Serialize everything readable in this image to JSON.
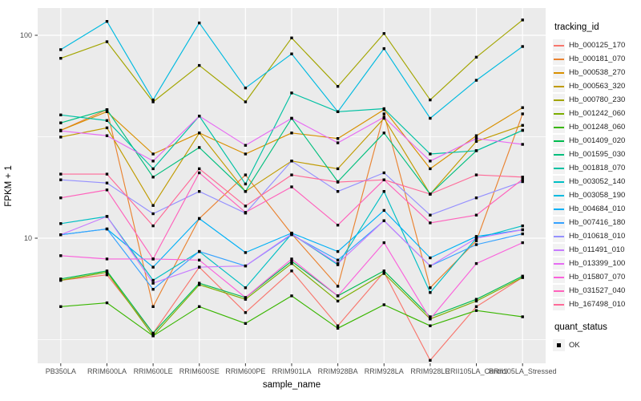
{
  "chart_data": {
    "type": "line",
    "title": "",
    "xlabel": "sample_name",
    "ylabel": "FPKM + 1",
    "y_scale": "log10",
    "y_ticks": [
      {
        "value": 10,
        "label": "10"
      },
      {
        "value": 100,
        "label": "100"
      }
    ],
    "y_minor_gridlines": [
      3.1623,
      31.623
    ],
    "ylim": [
      2.37,
      136
    ],
    "grid": true,
    "legend_position": "right",
    "legend_title": "tracking_id",
    "categories": [
      "PB350LA",
      "RRIM600LA",
      "RRIM600LE",
      "RRIM600SE",
      "RRIM600PE",
      "RRIM901LA",
      "RRIM928BA",
      "RRIM928LA",
      "RRIM928LE",
      "RRII105LA_Control",
      "RRII105LA_Stressed"
    ],
    "point_marker": {
      "shape": "square",
      "color": "#000000"
    },
    "series": [
      {
        "name": "Hb_000125_170",
        "color": "#F8766D",
        "values": [
          6.2,
          6.6,
          3.4,
          7.2,
          4.3,
          6.9,
          3.7,
          6.8,
          2.5,
          4.6,
          6.4
        ]
      },
      {
        "name": "Hb_000181_070",
        "color": "#EA8331",
        "values": [
          34,
          43,
          4.6,
          12.5,
          20.5,
          10.5,
          5.8,
          41,
          5.7,
          9.7,
          41
        ]
      },
      {
        "name": "Hb_000538_270",
        "color": "#D89000",
        "values": [
          34,
          42,
          26,
          33,
          26,
          33,
          31,
          43,
          22,
          32,
          44
        ]
      },
      {
        "name": "Hb_000563_320",
        "color": "#C09B00",
        "values": [
          31.5,
          35,
          14.5,
          33,
          17,
          24,
          22,
          39,
          16.5,
          30,
          36
        ]
      },
      {
        "name": "Hb_000780_230",
        "color": "#A3A500",
        "values": [
          77,
          93,
          47,
          71,
          47,
          97,
          56,
          102,
          48,
          78,
          119
        ]
      },
      {
        "name": "Hb_001242_060",
        "color": "#7CAE00",
        "values": [
          6.2,
          6.8,
          3.3,
          5.9,
          5.0,
          7.5,
          4.9,
          6.7,
          4.0,
          4.9,
          6.4
        ]
      },
      {
        "name": "Hb_001248_060",
        "color": "#39B600",
        "values": [
          4.6,
          4.8,
          3.3,
          4.6,
          3.8,
          5.2,
          3.6,
          4.7,
          3.7,
          4.4,
          4.1
        ]
      },
      {
        "name": "Hb_001409_020",
        "color": "#00BB4E",
        "values": [
          6.3,
          6.9,
          3.4,
          6.0,
          5.1,
          7.7,
          5.2,
          6.9,
          4.1,
          5.0,
          6.5
        ]
      },
      {
        "name": "Hb_001595_030",
        "color": "#00BF7D",
        "values": [
          37,
          43,
          20,
          28,
          17,
          39,
          19,
          33,
          16.5,
          27,
          34
        ]
      },
      {
        "name": "Hb_001818_070",
        "color": "#00C1A3",
        "values": [
          40.5,
          38,
          22,
          40,
          18.5,
          52,
          42,
          43.5,
          26,
          27,
          34
        ]
      },
      {
        "name": "Hb_003052_140",
        "color": "#00BFC4",
        "values": [
          11.8,
          12.8,
          6.2,
          8.6,
          5.7,
          10.5,
          7.4,
          17,
          5.4,
          10,
          11.5
        ]
      },
      {
        "name": "Hb_003058_190",
        "color": "#00BAE0",
        "values": [
          85,
          117,
          48,
          115,
          55,
          81,
          42,
          86,
          39,
          60,
          88
        ]
      },
      {
        "name": "Hb_004684_010",
        "color": "#00B0F6",
        "values": [
          10.4,
          11.1,
          7.2,
          12.5,
          8.5,
          10.6,
          8.6,
          13.7,
          8.0,
          10.2,
          11
        ]
      },
      {
        "name": "Hb_007416_180",
        "color": "#35A2FF",
        "values": [
          10.4,
          11.1,
          5.6,
          8.6,
          7.3,
          10.4,
          7.8,
          12.2,
          7.3,
          9.3,
          10.5
        ]
      },
      {
        "name": "Hb_010618_010",
        "color": "#9590FF",
        "values": [
          19.4,
          18.7,
          13.2,
          17,
          13.3,
          24,
          17,
          21,
          13,
          15.8,
          19
        ]
      },
      {
        "name": "Hb_011491_010",
        "color": "#C77CFF",
        "values": [
          10.4,
          12.8,
          6.0,
          7.2,
          7.3,
          10.5,
          7.5,
          12.2,
          7.3,
          10,
          11
        ]
      },
      {
        "name": "Hb_013399_100",
        "color": "#E76BF3",
        "values": [
          33.8,
          32,
          24,
          40,
          28.7,
          39,
          29.5,
          39.5,
          24,
          31,
          29
        ]
      },
      {
        "name": "Hb_015807_070",
        "color": "#FA62DB",
        "values": [
          8.2,
          7.9,
          7.9,
          7.8,
          5.1,
          7.9,
          5.2,
          9.5,
          4.0,
          7.5,
          9.5
        ]
      },
      {
        "name": "Hb_031527_040",
        "color": "#FF62BC",
        "values": [
          15.8,
          17.3,
          7.9,
          21,
          13.4,
          17.9,
          11.6,
          19.4,
          11.9,
          13,
          19.5
        ]
      },
      {
        "name": "Hb_167498_010",
        "color": "#FF6A98",
        "values": [
          20.7,
          20.7,
          11.5,
          22,
          14.4,
          20.5,
          18.9,
          19.4,
          16.5,
          20.5,
          20
        ]
      }
    ],
    "legend2": {
      "title": "quant_status",
      "items": [
        {
          "label": "OK",
          "marker": "square",
          "color": "#000000"
        }
      ]
    },
    "colors": {
      "panel_background": "#EBEBEB",
      "gridline": "#FFFFFF",
      "axis_text": "#4D4D4D",
      "axis_title": "#000000",
      "point": "#000000"
    }
  }
}
